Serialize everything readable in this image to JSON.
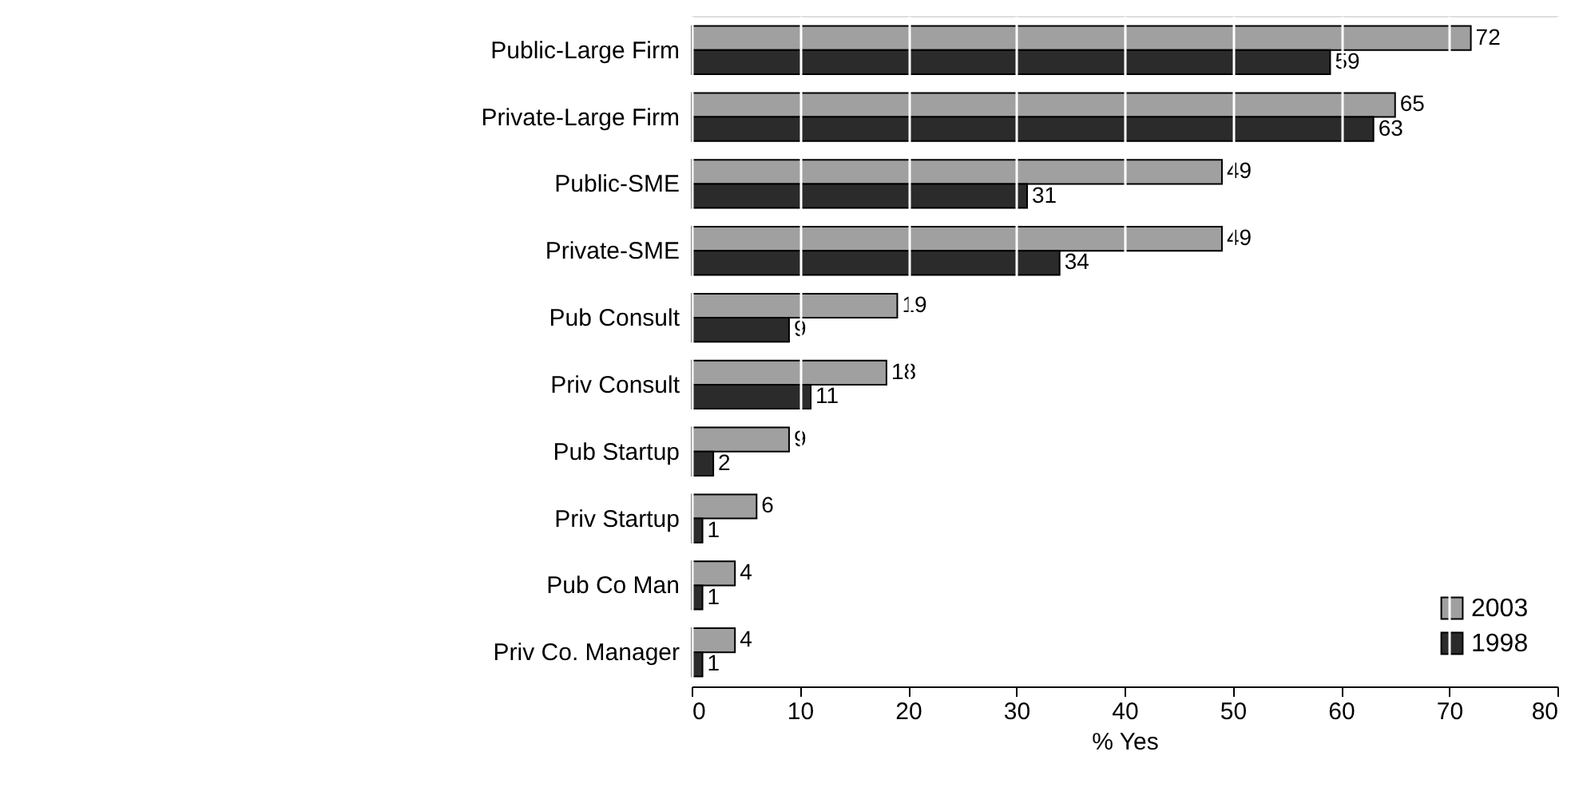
{
  "chart_data": {
    "type": "bar",
    "orientation": "horizontal",
    "categories": [
      "Public-Large Firm",
      "Private-Large Firm",
      "Public-SME",
      "Private-SME",
      "Pub Consult",
      "Priv Consult",
      "Pub Startup",
      "Priv Startup",
      "Pub Co Man",
      "Priv Co. Manager"
    ],
    "series": [
      {
        "name": "2003",
        "color": "#a0a0a0",
        "values": [
          72,
          65,
          49,
          49,
          19,
          18,
          9,
          6,
          4,
          4
        ]
      },
      {
        "name": "1998",
        "color": "#2b2b2b",
        "values": [
          59,
          63,
          31,
          34,
          9,
          11,
          2,
          1,
          1,
          1
        ]
      }
    ],
    "xlabel": "% Yes",
    "xlim": [
      0,
      80
    ],
    "xticks": [
      0,
      10,
      20,
      30,
      40,
      50,
      60,
      70,
      80
    ],
    "grid": "x",
    "legend": "bottom right",
    "data_labels": true
  }
}
